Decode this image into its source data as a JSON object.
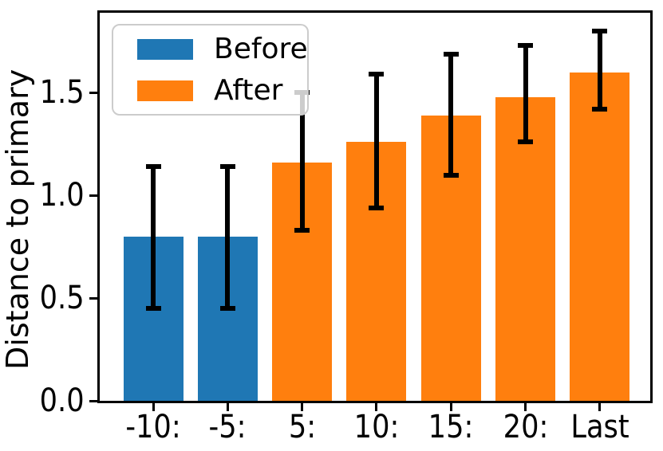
{
  "chart_data": {
    "type": "bar",
    "title": "",
    "xlabel": "",
    "ylabel": "Distance to primary",
    "categories": [
      "-10:",
      "-5:",
      "5:",
      "10:",
      "15:",
      "20:",
      "Last"
    ],
    "values": [
      0.8,
      0.8,
      1.16,
      1.26,
      1.39,
      1.48,
      1.6
    ],
    "error_low": [
      0.45,
      0.45,
      0.83,
      0.94,
      1.1,
      1.26,
      1.42
    ],
    "error_high": [
      1.14,
      1.14,
      1.5,
      1.59,
      1.69,
      1.73,
      1.8
    ],
    "groups": [
      "Before",
      "Before",
      "After",
      "After",
      "After",
      "After",
      "After"
    ],
    "series_colors": {
      "Before": "#1f77b4",
      "After": "#ff7f0e"
    },
    "error_bar_color": "#000000",
    "ylim": [
      0,
      1.89
    ],
    "yticks": [
      0,
      0.5,
      1.0,
      1.5
    ],
    "ytick_labels": [
      "0.0",
      "0.5",
      "1.0",
      "1.5"
    ],
    "grid": false,
    "legend": {
      "position": "upper-left",
      "entries": [
        {
          "label": "Before",
          "color": "#1f77b4"
        },
        {
          "label": "After",
          "color": "#ff7f0e"
        }
      ]
    },
    "bar_width_fraction": 0.8
  }
}
